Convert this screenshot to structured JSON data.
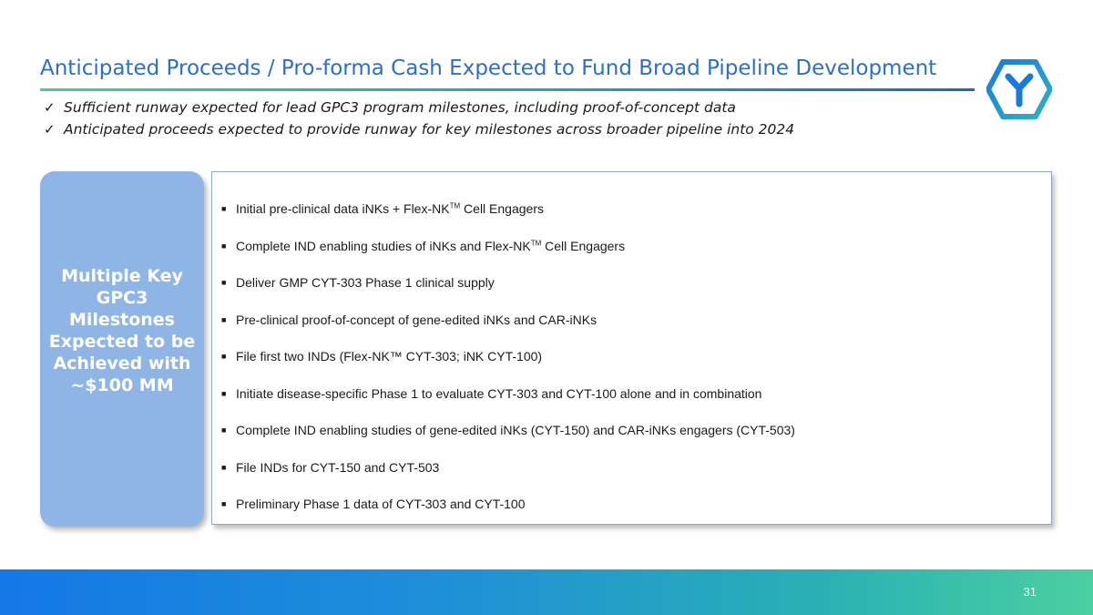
{
  "slide": {
    "title": "Anticipated Proceeds / Pro-forma Cash Expected to Fund Broad Pipeline Development",
    "logo_icon": "y-hexagon-logo",
    "colors": {
      "title": "#2a6fc9",
      "panel": "#8fb4e6",
      "footer_start": "#1478e6",
      "footer_end": "#4ad0a0"
    },
    "checks": [
      "Sufficient runway expected for lead GPC3 program milestones, including proof-of-concept data",
      "Anticipated proceeds expected to provide runway for key milestones across broader pipeline into 2024"
    ],
    "left_panel": "Multiple Key GPC3 Milestones Expected to be Achieved with ~$100 MM",
    "milestones": [
      {
        "pre": "Initial pre-clinical data iNKs + Flex-NK",
        "tm": "TM",
        "post": " Cell Engagers"
      },
      {
        "pre": "Complete IND enabling studies of iNKs and Flex-NK",
        "tm": "TM",
        "post": " Cell Engagers"
      },
      {
        "pre": "Deliver GMP CYT-303 Phase 1 clinical supply"
      },
      {
        "pre": "Pre-clinical proof-of-concept of gene-edited iNKs and CAR-iNKs"
      },
      {
        "pre": "File first two INDs (Flex-NK™ CYT-303; iNK CYT-100)"
      },
      {
        "pre": "Initiate disease-specific Phase 1 to evaluate CYT-303 and CYT-100 alone and in combination"
      },
      {
        "pre": "Complete IND enabling studies of gene-edited iNKs (CYT-150) and CAR-iNKs engagers (CYT-503)"
      },
      {
        "pre": "File INDs for CYT-150 and CYT-503"
      },
      {
        "pre": "Preliminary Phase 1 data of CYT-303 and CYT-100"
      }
    ],
    "page_number": "31"
  }
}
